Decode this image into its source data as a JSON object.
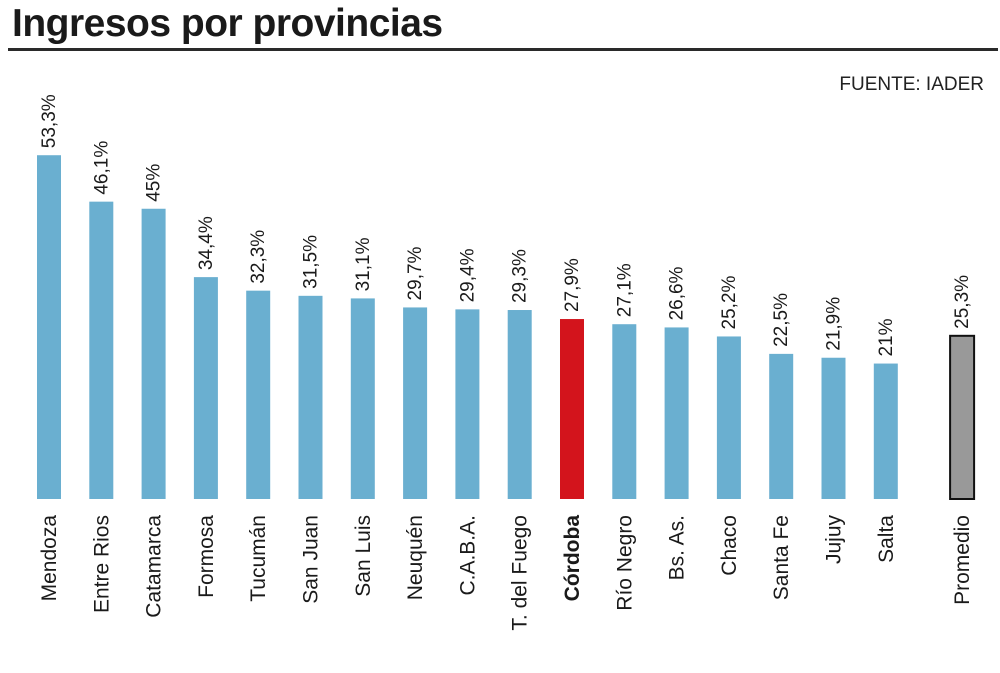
{
  "chart_data": {
    "type": "bar",
    "title": "Ingresos por provincias",
    "source": "FUENTE: IADER",
    "categories": [
      "Mendoza",
      "Entre Rios",
      "Catamarca",
      "Formosa",
      "Tucumán",
      "San Juan",
      "San Luis",
      "Neuquén",
      "C.A.B.A.",
      "T. del Fuego",
      "Córdoba",
      "Río Negro",
      "Bs. As.",
      "Chaco",
      "Santa Fe",
      "Jujuy",
      "Salta",
      "Promedio"
    ],
    "values": [
      53.3,
      46.1,
      45,
      34.4,
      32.3,
      31.5,
      31.1,
      29.7,
      29.4,
      29.3,
      27.9,
      27.1,
      26.6,
      25.2,
      22.5,
      21.9,
      21,
      25.3
    ],
    "value_labels": [
      "53,3%",
      "46,1%",
      "45%",
      "34,4%",
      "32,3%",
      "31,5%",
      "31,1%",
      "29,7%",
      "29,4%",
      "29,3%",
      "27,9%",
      "27,1%",
      "26,6%",
      "25,2%",
      "22,5%",
      "21,9%",
      "21%",
      "25,3%"
    ],
    "highlight": [
      "normal",
      "normal",
      "normal",
      "normal",
      "normal",
      "normal",
      "normal",
      "normal",
      "normal",
      "normal",
      "highlight",
      "normal",
      "normal",
      "normal",
      "normal",
      "normal",
      "normal",
      "average"
    ],
    "colors": {
      "normal": "#6aafd0",
      "highlight": "#d3141c",
      "average": "#999999",
      "average_border": "#111111"
    },
    "ylim": [
      0,
      55
    ],
    "grid": false,
    "legend": "none"
  }
}
